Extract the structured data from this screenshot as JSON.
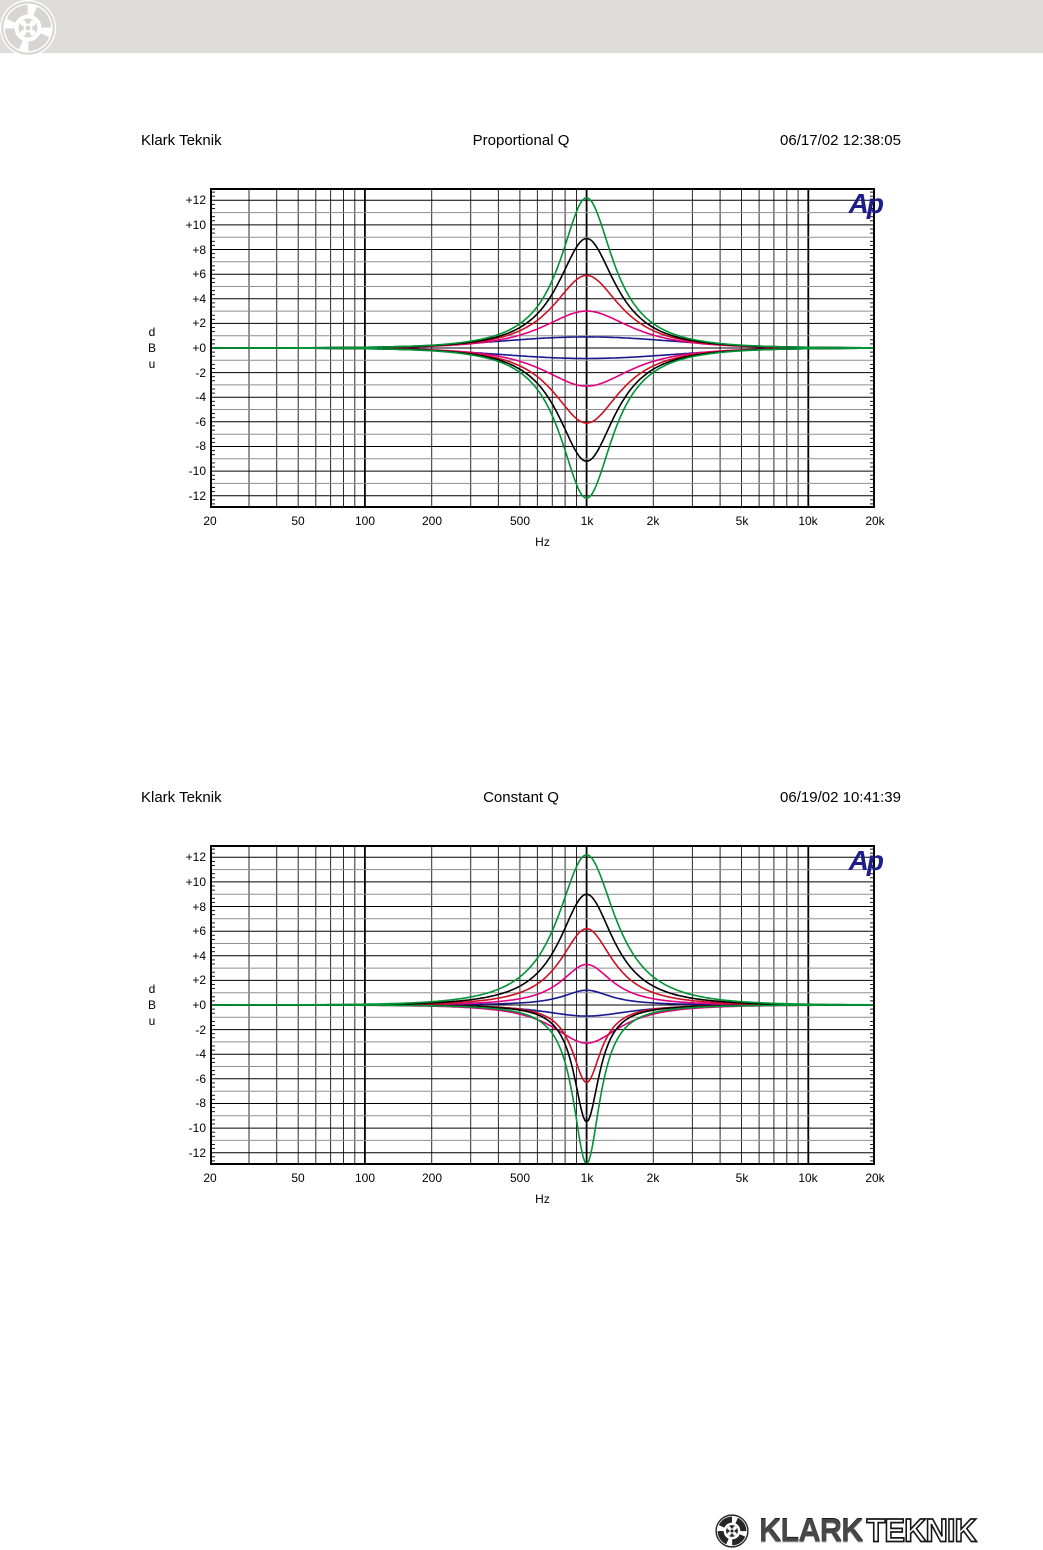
{
  "page": {
    "background": "#ffffff",
    "top_bar_color": "#deddd9"
  },
  "header_logo": {
    "name": "klark-teknik-roundel",
    "style": "light-grey"
  },
  "charts": [
    {
      "header": {
        "company": "Klark Teknik",
        "title": "Proportional Q",
        "datetime": "06/17/02 12:38:05"
      },
      "ylabel_chars": [
        "d",
        "B",
        "u"
      ],
      "xlabel": "Hz",
      "watermark": "Ap"
    },
    {
      "header": {
        "company": "Klark Teknik",
        "title": "Constant Q",
        "datetime": "06/19/02 10:41:39"
      },
      "ylabel_chars": [
        "d",
        "B",
        "u"
      ],
      "xlabel": "Hz",
      "watermark": "Ap"
    }
  ],
  "chart_data": [
    {
      "type": "line",
      "title": "Proportional Q",
      "xlabel": "Hz",
      "ylabel": "dBu",
      "x_scale": "log",
      "x_range_hz": [
        20,
        20000
      ],
      "ylim": [
        -13,
        13
      ],
      "center_hz": 1000,
      "y_tick_labels": [
        "+12",
        "+10",
        "+8",
        "+6",
        "+4",
        "+2",
        "+0",
        "-2",
        "-4",
        "-6",
        "-8",
        "-10",
        "-12"
      ],
      "x_ticks": [
        {
          "label": "20",
          "hz": 20
        },
        {
          "label": "50",
          "hz": 50
        },
        {
          "label": "100",
          "hz": 100
        },
        {
          "label": "200",
          "hz": 200
        },
        {
          "label": "500",
          "hz": 500
        },
        {
          "label": "1k",
          "hz": 1000
        },
        {
          "label": "2k",
          "hz": 2000
        },
        {
          "label": "5k",
          "hz": 5000
        },
        {
          "label": "10k",
          "hz": 10000
        },
        {
          "label": "20k",
          "hz": 20000
        }
      ],
      "grid": "log frequency lines 30-90,200-900,2k-9k with heavy decades; horizontal lines every 1 dB (grey odd, black even)",
      "model": "db(f) = peak_db / (1 + (u/bw)^2), u = (f/1000 - 1000/f)/2",
      "series": [
        {
          "name": "boost-1dB",
          "color": "#1a1a8e",
          "peak_db": 0.9,
          "bw": 1.3
        },
        {
          "name": "cut-1dB",
          "color": "#1a1a8e",
          "peak_db": -0.85,
          "bw": 1.3
        },
        {
          "name": "boost-3dB",
          "color": "#e00080",
          "peak_db": 3.0,
          "bw": 0.55
        },
        {
          "name": "cut-3dB",
          "color": "#e00080",
          "peak_db": -3.1,
          "bw": 0.55
        },
        {
          "name": "boost-6dB",
          "color": "#cc1122",
          "peak_db": 5.9,
          "bw": 0.42
        },
        {
          "name": "cut-6dB",
          "color": "#cc1122",
          "peak_db": -6.1,
          "bw": 0.42
        },
        {
          "name": "boost-9dB",
          "color": "#000000",
          "peak_db": 8.9,
          "bw": 0.36
        },
        {
          "name": "cut-9dB",
          "color": "#000000",
          "peak_db": -9.2,
          "bw": 0.36
        },
        {
          "name": "boost-12dB",
          "color": "#009434",
          "peak_db": 12.2,
          "bw": 0.33
        },
        {
          "name": "cut-12dB",
          "color": "#009434",
          "peak_db": -12.2,
          "bw": 0.33
        }
      ]
    },
    {
      "type": "line",
      "title": "Constant Q",
      "xlabel": "Hz",
      "ylabel": "dBu",
      "x_scale": "log",
      "x_range_hz": [
        20,
        20000
      ],
      "ylim": [
        -13,
        13
      ],
      "center_hz": 1000,
      "y_tick_labels": [
        "+12",
        "+10",
        "+8",
        "+6",
        "+4",
        "+2",
        "+0",
        "-2",
        "-4",
        "-6",
        "-8",
        "-10",
        "-12"
      ],
      "x_ticks": [
        {
          "label": "20",
          "hz": 20
        },
        {
          "label": "50",
          "hz": 50
        },
        {
          "label": "100",
          "hz": 100
        },
        {
          "label": "200",
          "hz": 200
        },
        {
          "label": "500",
          "hz": 500
        },
        {
          "label": "1k",
          "hz": 1000
        },
        {
          "label": "2k",
          "hz": 2000
        },
        {
          "label": "5k",
          "hz": 5000
        },
        {
          "label": "10k",
          "hz": 10000
        },
        {
          "label": "20k",
          "hz": 20000
        }
      ],
      "grid": "log frequency lines 30-90,200-900,2k-9k with heavy decades; horizontal lines every 1 dB (grey odd, black even)",
      "model": "db(f) = peak_db / (1 + (u/bw)^2), u = (f/1000 - 1000/f)/2",
      "series": [
        {
          "name": "boost-1dB",
          "color": "#1a1a8e",
          "peak_db": 1.2,
          "bw": 0.3
        },
        {
          "name": "cut-1dB",
          "color": "#1a1a8e",
          "peak_db": -0.9,
          "bw": 0.55
        },
        {
          "name": "boost-3dB",
          "color": "#e00080",
          "peak_db": 3.3,
          "bw": 0.32
        },
        {
          "name": "cut-3dB",
          "color": "#e00080",
          "peak_db": -3.1,
          "bw": 0.42
        },
        {
          "name": "boost-6dB",
          "color": "#cc1122",
          "peak_db": 6.2,
          "bw": 0.33
        },
        {
          "name": "cut-6dB",
          "color": "#cc1122",
          "peak_db": -6.3,
          "bw": 0.18
        },
        {
          "name": "boost-9dB",
          "color": "#000000",
          "peak_db": 9.0,
          "bw": 0.34
        },
        {
          "name": "cut-9dB",
          "color": "#000000",
          "peak_db": -9.5,
          "bw": 0.16
        },
        {
          "name": "boost-12dB",
          "color": "#009434",
          "peak_db": 12.2,
          "bw": 0.36
        },
        {
          "name": "cut-12dB",
          "color": "#009434",
          "peak_db": -12.9,
          "bw": 0.17
        }
      ]
    }
  ],
  "footer_logo": {
    "brand_filled": "KLARK",
    "brand_outline": "TEKNIK",
    "icon": "klark-teknik-roundel"
  },
  "colors": {
    "ap_logo": "#1e1e8a",
    "grid_major": "#000000",
    "grid_minor": "#8f8f8f",
    "curve_green": "#009434",
    "curve_black": "#000000",
    "curve_red": "#cc1122",
    "curve_magenta": "#e00080",
    "curve_blue": "#1a1a8e"
  }
}
